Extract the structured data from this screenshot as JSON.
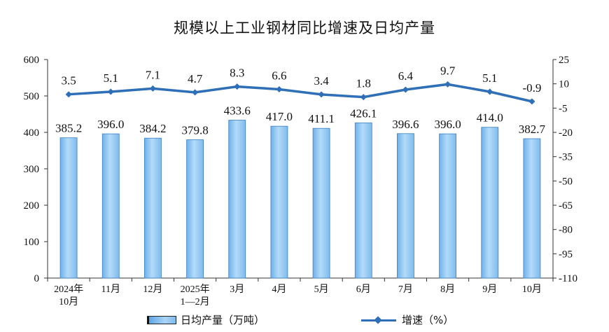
{
  "chart_data": {
    "type": "bar+line",
    "title": "规模以上工业钢材同比增速及日均产量",
    "categories": [
      [
        "2024年",
        "10月"
      ],
      [
        "11月"
      ],
      [
        "12月"
      ],
      [
        "2025年",
        "1—2月"
      ],
      [
        "3月"
      ],
      [
        "4月"
      ],
      [
        "5月"
      ],
      [
        "6月"
      ],
      [
        "7月"
      ],
      [
        "8月"
      ],
      [
        "9月"
      ],
      [
        "10月"
      ]
    ],
    "series": [
      {
        "name": "日均产量（万吨）",
        "type": "bar",
        "axis": "left",
        "values": [
          385.2,
          396.0,
          384.2,
          379.8,
          433.6,
          417.0,
          411.1,
          426.1,
          396.6,
          396.0,
          414.0,
          382.7
        ],
        "labels": [
          "385.2",
          "396.0",
          "384.2",
          "379.8",
          "433.6",
          "417.0",
          "411.1",
          "426.1",
          "396.6",
          "396.0",
          "414.0",
          "382.7"
        ]
      },
      {
        "name": "增速（%）",
        "type": "line",
        "axis": "right",
        "values": [
          3.5,
          5.1,
          7.1,
          4.7,
          8.3,
          6.6,
          3.4,
          1.8,
          6.4,
          9.7,
          5.1,
          -0.9
        ],
        "labels": [
          "3.5",
          "5.1",
          "7.1",
          "4.7",
          "8.3",
          "6.6",
          "3.4",
          "1.8",
          "6.4",
          "9.7",
          "5.1",
          "-0.9"
        ]
      }
    ],
    "y_left": {
      "min": 0,
      "max": 600,
      "ticks": [
        "0",
        "100",
        "200",
        "300",
        "400",
        "500",
        "600"
      ]
    },
    "y_right": {
      "min": -110,
      "max": 25,
      "ticks": [
        "25",
        "10",
        "-5",
        "-20",
        "-35",
        "-50",
        "-65",
        "-80",
        "-95",
        "-110"
      ]
    },
    "grid": false,
    "legend_position": "bottom",
    "colors": {
      "bar": "#8ec5f2",
      "bar_edge": "#3d7fc1",
      "line": "#2e6fb7",
      "text": "#111111"
    }
  }
}
